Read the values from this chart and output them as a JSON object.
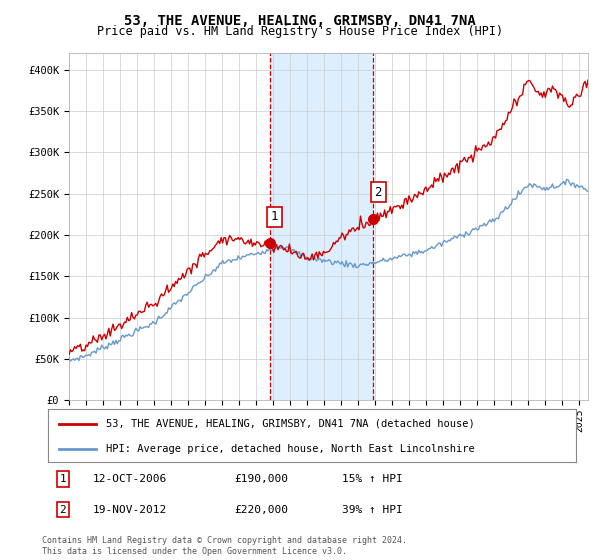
{
  "title": "53, THE AVENUE, HEALING, GRIMSBY, DN41 7NA",
  "subtitle": "Price paid vs. HM Land Registry's House Price Index (HPI)",
  "ylabel_ticks": [
    "£0",
    "£50K",
    "£100K",
    "£150K",
    "£200K",
    "£250K",
    "£300K",
    "£350K",
    "£400K"
  ],
  "ylim": [
    0,
    420000
  ],
  "xlim_start": 1995.0,
  "xlim_end": 2025.5,
  "purchase1_x": 2006.79,
  "purchase1_y": 190000,
  "purchase2_x": 2012.88,
  "purchase2_y": 220000,
  "shade_color": "#ddeeff",
  "vline_color": "#cc0000",
  "legend1_label": "53, THE AVENUE, HEALING, GRIMSBY, DN41 7NA (detached house)",
  "legend2_label": "HPI: Average price, detached house, North East Lincolnshire",
  "footer": "Contains HM Land Registry data © Crown copyright and database right 2024.\nThis data is licensed under the Open Government Licence v3.0.",
  "hpi_line_color": "#6699cc",
  "price_line_color": "#cc0000",
  "background_color": "#ffffff",
  "grid_color": "#cccccc"
}
